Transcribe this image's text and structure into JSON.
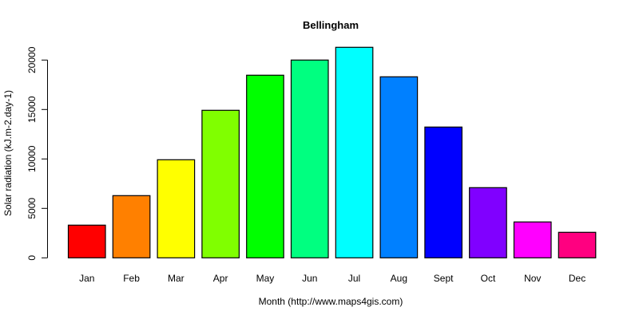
{
  "chart_data": {
    "type": "bar",
    "title": "Bellingham",
    "xlabel": "Month (http://www.maps4gis.com)",
    "ylabel": "Solar radiation (kJ.m-2.day-1)",
    "categories": [
      "Jan",
      "Feb",
      "Mar",
      "Apr",
      "May",
      "Jun",
      "Jul",
      "Aug",
      "Sept",
      "Oct",
      "Nov",
      "Dec"
    ],
    "values": [
      3306,
      6290,
      9919,
      14919,
      18468,
      20000,
      21290,
      18306,
      13226,
      7097,
      3629,
      2581
    ],
    "colors": [
      "#FF0000",
      "#FF8000",
      "#FFFF00",
      "#80FF00",
      "#00FF00",
      "#00FF80",
      "#00FFFF",
      "#0080FF",
      "#0000FF",
      "#8000FF",
      "#FF00FF",
      "#FF0080"
    ],
    "yticks": [
      0,
      5000,
      10000,
      15000,
      20000
    ],
    "ylim": [
      0,
      21290
    ],
    "grid": false,
    "legend": null
  }
}
